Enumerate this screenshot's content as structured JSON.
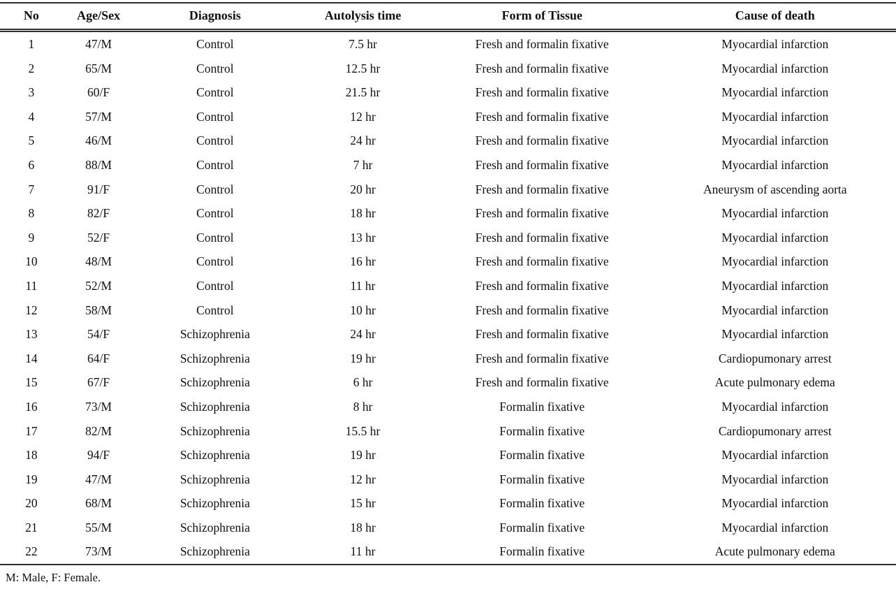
{
  "table": {
    "columns": [
      "No",
      "Age/Sex",
      "Diagnosis",
      "Autolysis time",
      "Form of Tissue",
      "Cause of death"
    ],
    "rows": [
      [
        "1",
        "47/M",
        "Control",
        "7.5 hr",
        "Fresh and formalin fixative",
        "Myocardial infarction"
      ],
      [
        "2",
        "65/M",
        "Control",
        "12.5 hr",
        "Fresh and formalin fixative",
        "Myocardial infarction"
      ],
      [
        "3",
        "60/F",
        "Control",
        "21.5 hr",
        "Fresh and formalin fixative",
        "Myocardial infarction"
      ],
      [
        "4",
        "57/M",
        "Control",
        "12 hr",
        "Fresh and formalin fixative",
        "Myocardial infarction"
      ],
      [
        "5",
        "46/M",
        "Control",
        "24 hr",
        "Fresh and formalin fixative",
        "Myocardial infarction"
      ],
      [
        "6",
        "88/M",
        "Control",
        "7 hr",
        "Fresh and formalin fixative",
        "Myocardial infarction"
      ],
      [
        "7",
        "91/F",
        "Control",
        "20 hr",
        "Fresh and formalin fixative",
        "Aneurysm of ascending aorta"
      ],
      [
        "8",
        "82/F",
        "Control",
        "18 hr",
        "Fresh and formalin fixative",
        "Myocardial infarction"
      ],
      [
        "9",
        "52/F",
        "Control",
        "13 hr",
        "Fresh and formalin fixative",
        "Myocardial infarction"
      ],
      [
        "10",
        "48/M",
        "Control",
        "16 hr",
        "Fresh and formalin fixative",
        "Myocardial infarction"
      ],
      [
        "11",
        "52/M",
        "Control",
        "11 hr",
        "Fresh and formalin fixative",
        "Myocardial infarction"
      ],
      [
        "12",
        "58/M",
        "Control",
        "10 hr",
        "Fresh and formalin fixative",
        "Myocardial infarction"
      ],
      [
        "13",
        "54/F",
        "Schizophrenia",
        "24 hr",
        "Fresh and formalin fixative",
        "Myocardial infarction"
      ],
      [
        "14",
        "64/F",
        "Schizophrenia",
        "19 hr",
        "Fresh and formalin fixative",
        "Cardiopumonary arrest"
      ],
      [
        "15",
        "67/F",
        "Schizophrenia",
        "6 hr",
        "Fresh and formalin fixative",
        "Acute pulmonary edema"
      ],
      [
        "16",
        "73/M",
        "Schizophrenia",
        "8 hr",
        "Formalin fixative",
        "Myocardial infarction"
      ],
      [
        "17",
        "82/M",
        "Schizophrenia",
        "15.5 hr",
        "Formalin fixative",
        "Cardiopumonary arrest"
      ],
      [
        "18",
        "94/F",
        "Schizophrenia",
        "19 hr",
        "Formalin fixative",
        "Myocardial infarction"
      ],
      [
        "19",
        "47/M",
        "Schizophrenia",
        "12 hr",
        "Formalin fixative",
        "Myocardial infarction"
      ],
      [
        "20",
        "68/M",
        "Schizophrenia",
        "15 hr",
        "Formalin fixative",
        "Myocardial infarction"
      ],
      [
        "21",
        "55/M",
        "Schizophrenia",
        "18 hr",
        "Formalin fixative",
        "Myocardial infarction"
      ],
      [
        "22",
        "73/M",
        "Schizophrenia",
        "11 hr",
        "Formalin fixative",
        "Acute pulmonary edema"
      ]
    ],
    "footnote": "M: Male, F: Female."
  }
}
